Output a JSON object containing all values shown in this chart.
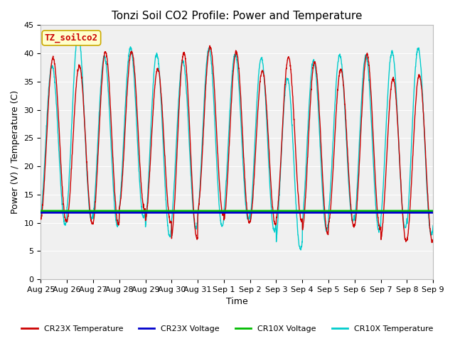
{
  "title": "Tonzi Soil CO2 Profile: Power and Temperature",
  "ylabel": "Power (V) / Temperature (C)",
  "xlabel": "Time",
  "ylim": [
    0,
    45
  ],
  "yticks": [
    0,
    5,
    10,
    15,
    20,
    25,
    30,
    35,
    40,
    45
  ],
  "annotation_text": "TZ_soilco2",
  "annotation_box_color": "#ffffcc",
  "annotation_box_edge": "#ccaa00",
  "annotation_text_color": "#cc0000",
  "cr23x_temp_color": "#cc0000",
  "cr23x_volt_color": "#0000cc",
  "cr10x_volt_color": "#00bb00",
  "cr10x_temp_color": "#00cccc",
  "cr23x_volt_value": 11.8,
  "cr10x_volt_value": 12.1,
  "background_color": "#e8e8e8",
  "plot_bg_color": "#f0f0f0",
  "legend_labels": [
    "CR23X Temperature",
    "CR23X Voltage",
    "CR10X Voltage",
    "CR10X Temperature"
  ],
  "n_days": 15,
  "x_tick_labels": [
    "Aug 25",
    "Aug 26",
    "Aug 27",
    "Aug 28",
    "Aug 29",
    "Aug 30",
    "Aug 31",
    "Sep 1",
    "Sep 2",
    "Sep 3",
    "Sep 4",
    "Sep 5",
    "Sep 6",
    "Sep 7",
    "Sep 8",
    "Sep 9"
  ],
  "title_fontsize": 11,
  "label_fontsize": 9,
  "tick_fontsize": 8,
  "legend_fontsize": 8,
  "figwidth": 6.4,
  "figheight": 4.8,
  "dpi": 100
}
